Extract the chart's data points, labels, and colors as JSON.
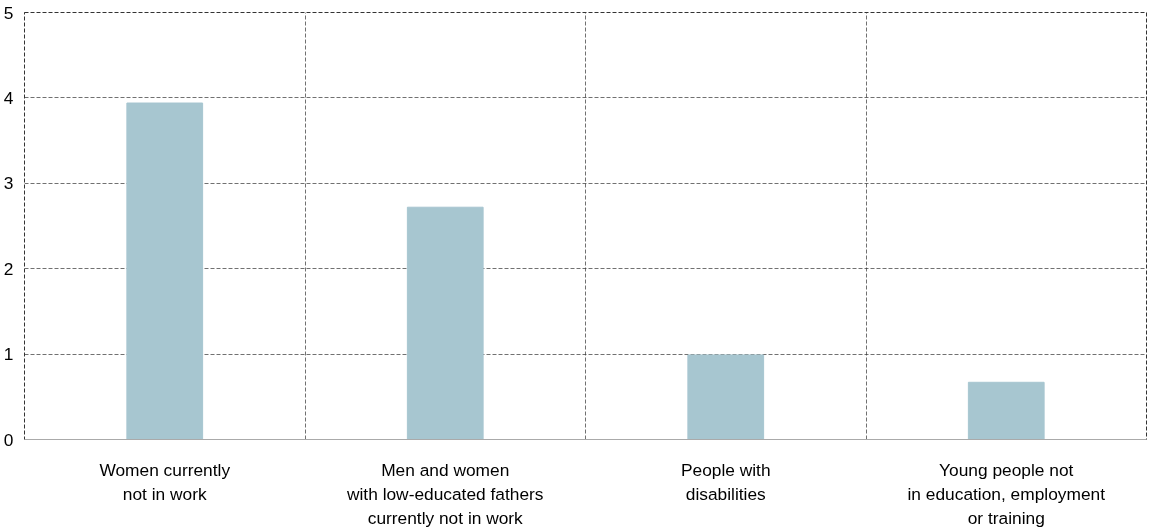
{
  "chart_data": {
    "type": "bar",
    "categories": [
      "Women currently\nnot in work",
      "Men and women\nwith low-educated fathers\ncurrently not in work",
      "People with\ndisabilities",
      "Young people not\nin education, employment\nor training"
    ],
    "values": [
      3.94,
      2.72,
      0.99,
      0.67
    ],
    "color": "#a7c6d0",
    "ylim": [
      0,
      5
    ],
    "yticks": [
      0,
      1,
      2,
      3,
      4,
      5
    ],
    "grid": true
  }
}
